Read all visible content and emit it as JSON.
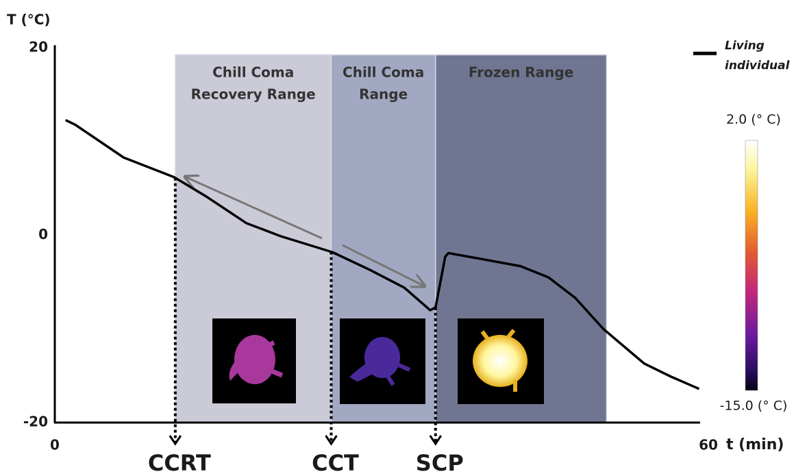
{
  "chart_data": {
    "type": "line",
    "y_label": "T (°C)",
    "x_label": "t (min)",
    "xlim": [
      0,
      60
    ],
    "xticks": [
      0,
      60
    ],
    "ylim": [
      -20,
      20
    ],
    "yticks": [
      -20,
      0,
      20
    ],
    "x": [
      1,
      1.9,
      6.4,
      11.1,
      14,
      17.8,
      21,
      25.8,
      29.3,
      32.5,
      34.9,
      35.4,
      36.3,
      36.6,
      39.5,
      43.3,
      45.9,
      48.4,
      51,
      54.8,
      57.3,
      59.9
    ],
    "series": [
      {
        "name": "Living individual",
        "color": "#000000",
        "values": [
          12.3,
          11.8,
          8.3,
          6.2,
          4.2,
          1.3,
          -0.1,
          -1.8,
          -3.7,
          -5.6,
          -8,
          -7.7,
          -2.3,
          -1.9,
          -2.5,
          -3.3,
          -4.5,
          -6.7,
          -10,
          -13.7,
          -15.1,
          -16.4
        ]
      }
    ],
    "ranges": [
      {
        "label": [
          "Chill Coma",
          "Recovery Range"
        ],
        "start": 11.2,
        "end": 25.7,
        "color": "#cbcbd8"
      },
      {
        "label": [
          "Chill Coma",
          "Range"
        ],
        "start": 25.7,
        "end": 35.4,
        "color": "#a3a8c2"
      },
      {
        "label": [
          "Frozen Range"
        ],
        "start": 35.4,
        "end": 51.3,
        "color": "#707691"
      }
    ],
    "markers": [
      {
        "label": "CCRT",
        "x": 11.2
      },
      {
        "label": "CCT",
        "x": 25.7
      },
      {
        "label": "SCP",
        "x": 35.4
      }
    ],
    "colorbar": {
      "max_label": "2.0 (° C)",
      "min_label": "-15.0 (° C)"
    }
  }
}
